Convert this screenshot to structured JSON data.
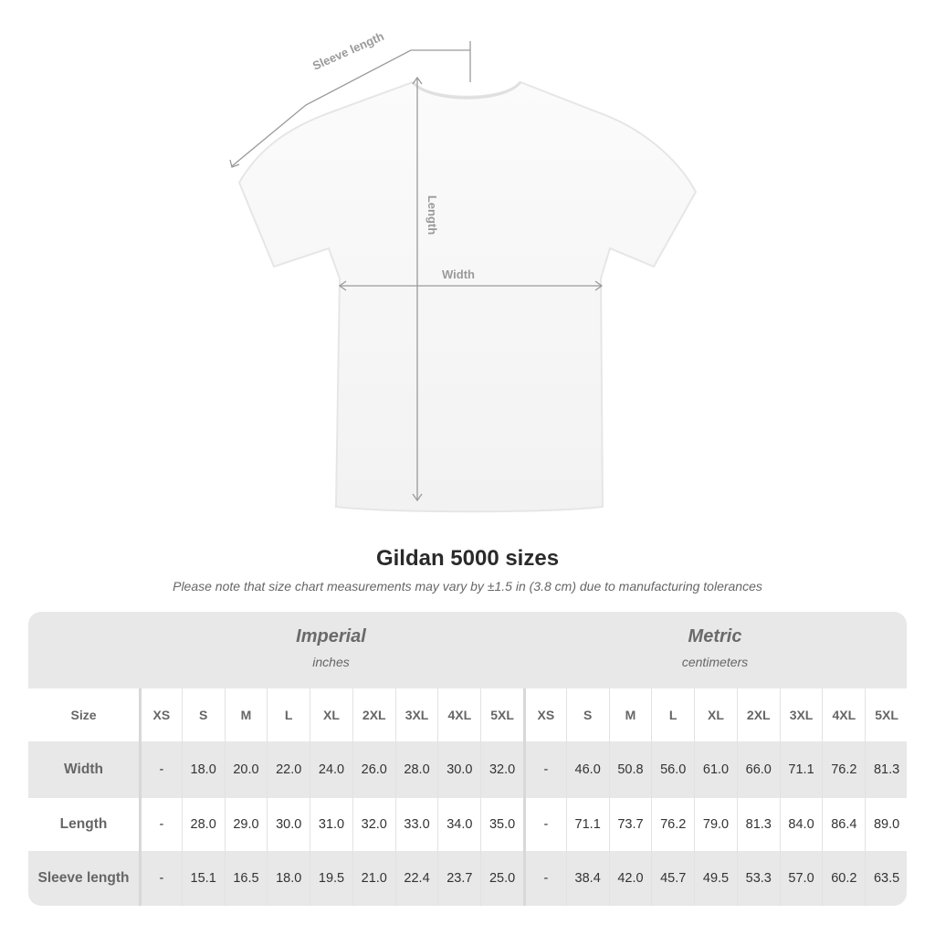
{
  "diagram": {
    "sleeve_label": "Sleeve length",
    "length_label": "Length",
    "width_label": "Width"
  },
  "title": "Gildan 5000 sizes",
  "note": "Please note that size chart measurements may vary by ±1.5 in (3.8 cm) due to manufacturing tolerances",
  "table": {
    "imperial": {
      "heading": "Imperial",
      "unit": "inches"
    },
    "metric": {
      "heading": "Metric",
      "unit": "centimeters"
    },
    "size_label": "Size",
    "sizes": [
      "XS",
      "S",
      "M",
      "L",
      "XL",
      "2XL",
      "3XL",
      "4XL",
      "5XL"
    ],
    "rows": [
      {
        "label": "Width",
        "imperial": [
          "-",
          "18.0",
          "20.0",
          "22.0",
          "24.0",
          "26.0",
          "28.0",
          "30.0",
          "32.0"
        ],
        "metric": [
          "-",
          "46.0",
          "50.8",
          "56.0",
          "61.0",
          "66.0",
          "71.1",
          "76.2",
          "81.3"
        ]
      },
      {
        "label": "Length",
        "imperial": [
          "-",
          "28.0",
          "29.0",
          "30.0",
          "31.0",
          "32.0",
          "33.0",
          "34.0",
          "35.0"
        ],
        "metric": [
          "-",
          "71.1",
          "73.7",
          "76.2",
          "79.0",
          "81.3",
          "84.0",
          "86.4",
          "89.0"
        ]
      },
      {
        "label": "Sleeve length",
        "imperial": [
          "-",
          "15.1",
          "16.5",
          "18.0",
          "19.5",
          "21.0",
          "22.4",
          "23.7",
          "25.0"
        ],
        "metric": [
          "-",
          "38.4",
          "42.0",
          "45.7",
          "49.5",
          "53.3",
          "57.0",
          "60.2",
          "63.5"
        ]
      }
    ]
  }
}
